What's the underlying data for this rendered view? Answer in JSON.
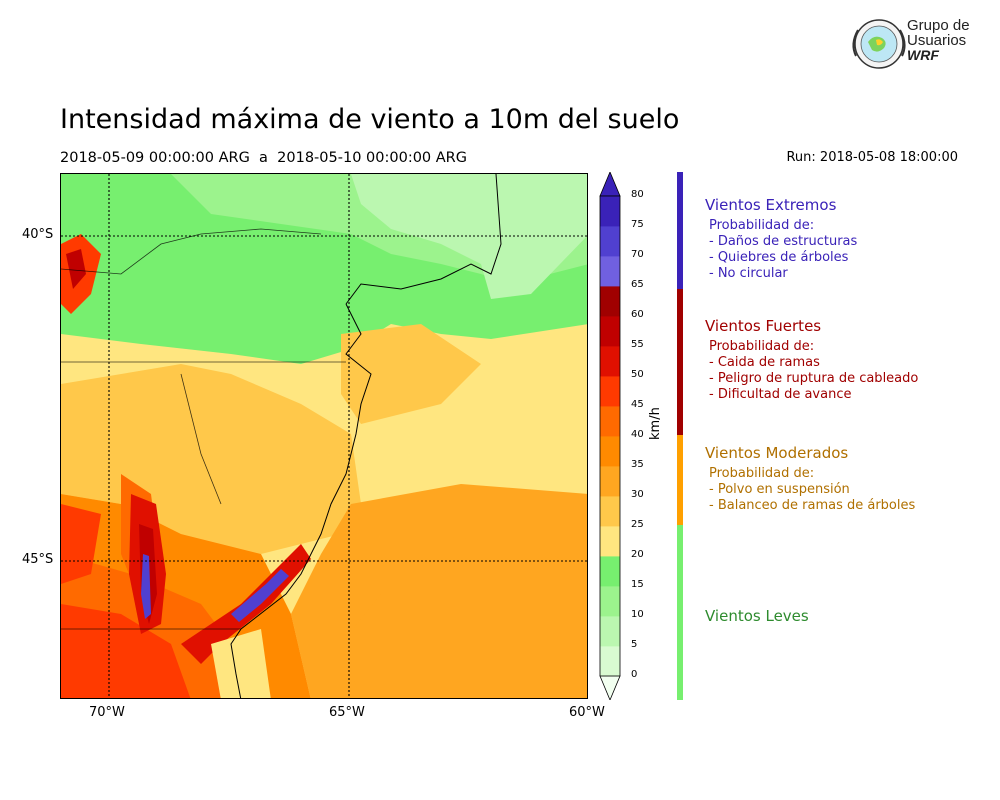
{
  "figure": {
    "title": "Intensidad máxima de viento a 10m del suelo",
    "date_range": "2018-05-09 00:00:00 ARG  a  2018-05-10 00:00:00 ARG",
    "run": "Run: 2018-05-08 18:00:00"
  },
  "logo": {
    "line1": "Grupo de",
    "line2": "Usuarios",
    "line3": "WRF"
  },
  "map": {
    "lat_ticks": [
      "40°S",
      "45°S"
    ],
    "lon_ticks": [
      "70°W",
      "65°W",
      "60°W"
    ],
    "lon_range": [
      -71,
      -60
    ],
    "lat_range": [
      -48.2,
      -38.9
    ],
    "gridlines": "dotted",
    "regions": [
      {
        "name": "north-interior",
        "wind_kmh": "15-25"
      },
      {
        "name": "northeast-ocean",
        "wind_kmh": "10-20"
      },
      {
        "name": "central-coast",
        "wind_kmh": "25-35"
      },
      {
        "name": "southeast-ocean",
        "wind_kmh": "35-40"
      },
      {
        "name": "south-andes",
        "wind_kmh": "55-75"
      }
    ]
  },
  "colorbar": {
    "unit": "km/h",
    "ticks": [
      "80",
      "75",
      "70",
      "65",
      "60",
      "55",
      "50",
      "45",
      "40",
      "35",
      "30",
      "25",
      "20",
      "15",
      "10",
      "5",
      "0"
    ],
    "levels": [
      0,
      5,
      10,
      15,
      20,
      25,
      30,
      35,
      40,
      45,
      50,
      55,
      60,
      65,
      70,
      75,
      80
    ],
    "colors": [
      "#f2fff0",
      "#d9fbd1",
      "#bbf7b0",
      "#9cf38d",
      "#77ef6f",
      "#ffe680",
      "#ffc84a",
      "#ffa620",
      "#ff8a00",
      "#ff6a00",
      "#ff3a00",
      "#e01000",
      "#c00000",
      "#a00000",
      "#7060e0",
      "#5040d0",
      "#3a22b8"
    ],
    "extend": "both"
  },
  "categories": [
    {
      "title": "Vientos Extremos",
      "color": "#3a22b8",
      "text_color": "#3a22b8",
      "heading": "Probabilidad de:",
      "lines": [
        "- Daños de estructuras",
        "- Quiebres de árboles",
        "- No circular"
      ]
    },
    {
      "title": "Vientos Fuertes",
      "color": "#a00000",
      "text_color": "#a00000",
      "heading": "Probabilidad de:",
      "lines": [
        "- Caida de ramas",
        "- Peligro de ruptura de cableado",
        "- Dificultad de avance"
      ]
    },
    {
      "title": "Vientos Moderados",
      "color": "#ffa000",
      "text_color": "#b07000",
      "heading": "Probabilidad de:",
      "lines": [
        "- Polvo en suspensión",
        "- Balanceo de ramas de árboles"
      ]
    },
    {
      "title": "Vientos Leves",
      "color": "#77ef6f",
      "text_color": "#2e8b2e",
      "heading": "",
      "lines": []
    }
  ]
}
